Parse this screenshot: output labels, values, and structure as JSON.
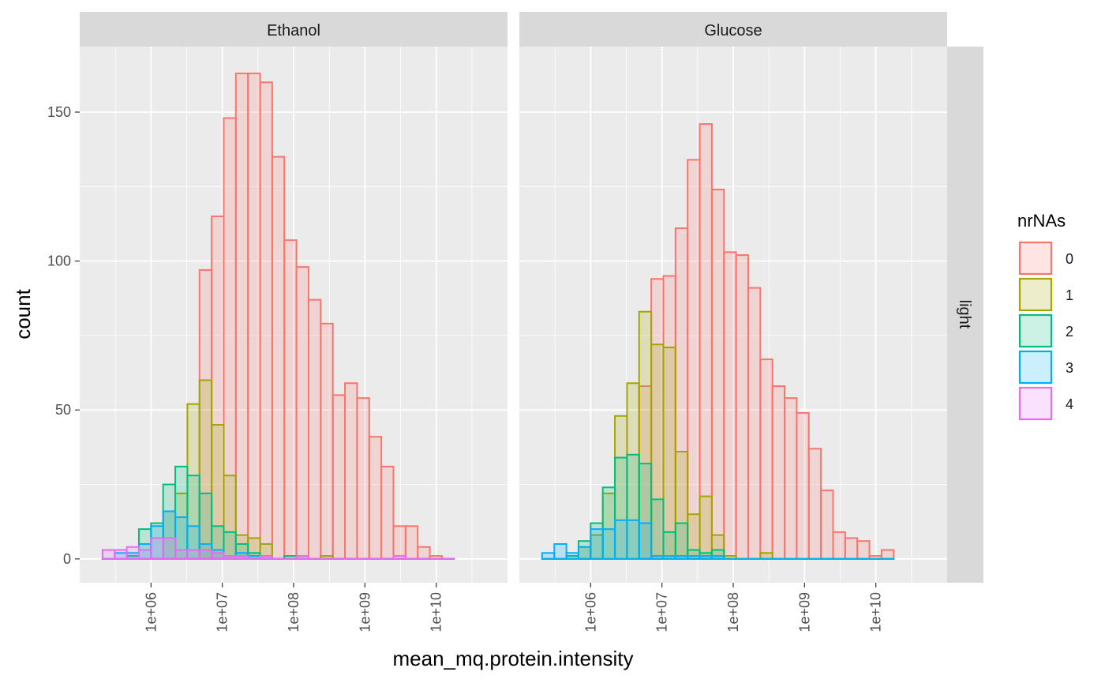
{
  "chart_data": {
    "type": "bar",
    "subtype": "overlaid histogram, faceted",
    "xlabel": "mean_mq.protein.intensity",
    "ylabel": "count",
    "x_scale": "log10",
    "x_range": [
      100000,
      100000000000
    ],
    "x_ticks": [
      "1e+06",
      "1e+07",
      "1e+08",
      "1e+09",
      "1e+10"
    ],
    "x_tick_values": [
      1000000,
      10000000,
      100000000,
      1000000000,
      10000000000
    ],
    "ylim": [
      -8,
      172
    ],
    "y_ticks": [
      "0",
      "50",
      "100",
      "150"
    ],
    "y_tick_values": [
      0,
      50,
      100,
      150
    ],
    "row_facet": "light",
    "grid": true,
    "legend": {
      "title": "nrNAs",
      "position": "right",
      "entries": [
        {
          "label": "0",
          "color": "#F8766D"
        },
        {
          "label": "1",
          "color": "#A3A500"
        },
        {
          "label": "2",
          "color": "#00BF7D"
        },
        {
          "label": "3",
          "color": "#00B0F6"
        },
        {
          "label": "4",
          "color": "#E76BF3"
        }
      ]
    },
    "facets": [
      {
        "title": "Ethanol",
        "bins": [
          {
            "x0": 5.32,
            "x1": 5.49
          },
          {
            "x0": 5.49,
            "x1": 5.66
          },
          {
            "x0": 5.66,
            "x1": 5.83
          },
          {
            "x0": 5.83,
            "x1": 6.0
          },
          {
            "x0": 6.0,
            "x1": 6.17
          },
          {
            "x0": 6.17,
            "x1": 6.34
          },
          {
            "x0": 6.34,
            "x1": 6.51
          },
          {
            "x0": 6.51,
            "x1": 6.68
          },
          {
            "x0": 6.68,
            "x1": 6.85
          },
          {
            "x0": 6.85,
            "x1": 7.02
          },
          {
            "x0": 7.02,
            "x1": 7.19
          },
          {
            "x0": 7.19,
            "x1": 7.36
          },
          {
            "x0": 7.36,
            "x1": 7.53
          },
          {
            "x0": 7.53,
            "x1": 7.7
          },
          {
            "x0": 7.7,
            "x1": 7.87
          },
          {
            "x0": 7.87,
            "x1": 8.04
          },
          {
            "x0": 8.04,
            "x1": 8.21
          },
          {
            "x0": 8.21,
            "x1": 8.38
          },
          {
            "x0": 8.38,
            "x1": 8.55
          },
          {
            "x0": 8.55,
            "x1": 8.72
          },
          {
            "x0": 8.72,
            "x1": 8.89
          },
          {
            "x0": 8.89,
            "x1": 9.06
          },
          {
            "x0": 9.06,
            "x1": 9.23
          },
          {
            "x0": 9.23,
            "x1": 9.4
          },
          {
            "x0": 9.4,
            "x1": 9.57
          },
          {
            "x0": 9.57,
            "x1": 9.74
          },
          {
            "x0": 9.74,
            "x1": 9.91
          },
          {
            "x0": 9.91,
            "x1": 10.08
          },
          {
            "x0": 10.08,
            "x1": 10.25
          }
        ],
        "series": [
          {
            "name": "0",
            "values": [
              0,
              0,
              0,
              0,
              0,
              0,
              0,
              0,
              97,
              115,
              148,
              163,
              163,
              160,
              135,
              107,
              98,
              87,
              79,
              55,
              59,
              54,
              41,
              31,
              11,
              11,
              4,
              1,
              0
            ]
          },
          {
            "name": "1",
            "values": [
              0,
              0,
              0,
              0,
              0,
              16,
              22,
              52,
              60,
              45,
              28,
              8,
              7,
              5,
              0,
              0,
              0,
              0,
              1,
              0,
              0,
              0,
              0,
              0,
              0,
              0,
              0,
              0,
              0
            ]
          },
          {
            "name": "2",
            "values": [
              0,
              0,
              1,
              10,
              12,
              25,
              31,
              28,
              22,
              11,
              9,
              5,
              2,
              0,
              0,
              1,
              1,
              0,
              0,
              0,
              0,
              0,
              0,
              0,
              0,
              0,
              0,
              0,
              0
            ]
          },
          {
            "name": "3",
            "values": [
              0,
              2,
              2,
              5,
              11,
              16,
              14,
              11,
              5,
              3,
              1,
              2,
              1,
              1,
              0,
              0,
              0,
              0,
              0,
              0,
              0,
              0,
              0,
              0,
              0,
              0,
              0,
              0,
              0
            ]
          },
          {
            "name": "4",
            "values": [
              3,
              3,
              4,
              3,
              7,
              7,
              3,
              3,
              3,
              2,
              1,
              1,
              0,
              1,
              0,
              0,
              1,
              0,
              0,
              0,
              0,
              0,
              0,
              0,
              1,
              0,
              0,
              0,
              0
            ]
          }
        ]
      },
      {
        "title": "Glucose",
        "bins": [
          {
            "x0": 5.32,
            "x1": 5.49
          },
          {
            "x0": 5.49,
            "x1": 5.66
          },
          {
            "x0": 5.66,
            "x1": 5.83
          },
          {
            "x0": 5.83,
            "x1": 6.0
          },
          {
            "x0": 6.0,
            "x1": 6.17
          },
          {
            "x0": 6.17,
            "x1": 6.34
          },
          {
            "x0": 6.34,
            "x1": 6.51
          },
          {
            "x0": 6.51,
            "x1": 6.68
          },
          {
            "x0": 6.68,
            "x1": 6.85
          },
          {
            "x0": 6.85,
            "x1": 7.02
          },
          {
            "x0": 7.02,
            "x1": 7.19
          },
          {
            "x0": 7.19,
            "x1": 7.36
          },
          {
            "x0": 7.36,
            "x1": 7.53
          },
          {
            "x0": 7.53,
            "x1": 7.7
          },
          {
            "x0": 7.7,
            "x1": 7.87
          },
          {
            "x0": 7.87,
            "x1": 8.04
          },
          {
            "x0": 8.04,
            "x1": 8.21
          },
          {
            "x0": 8.21,
            "x1": 8.38
          },
          {
            "x0": 8.38,
            "x1": 8.55
          },
          {
            "x0": 8.55,
            "x1": 8.72
          },
          {
            "x0": 8.72,
            "x1": 8.89
          },
          {
            "x0": 8.89,
            "x1": 9.06
          },
          {
            "x0": 9.06,
            "x1": 9.23
          },
          {
            "x0": 9.23,
            "x1": 9.4
          },
          {
            "x0": 9.4,
            "x1": 9.57
          },
          {
            "x0": 9.57,
            "x1": 9.74
          },
          {
            "x0": 9.74,
            "x1": 9.91
          },
          {
            "x0": 9.91,
            "x1": 10.08
          },
          {
            "x0": 10.08,
            "x1": 10.25
          }
        ],
        "series": [
          {
            "name": "0",
            "values": [
              0,
              0,
              0,
              0,
              0,
              0,
              0,
              0,
              58,
              94,
              95,
              111,
              134,
              146,
              124,
              103,
              102,
              91,
              67,
              58,
              54,
              49,
              37,
              23,
              9,
              7,
              6,
              1,
              3
            ]
          },
          {
            "name": "1",
            "values": [
              0,
              0,
              0,
              4,
              8,
              22,
              48,
              59,
              83,
              72,
              71,
              36,
              15,
              21,
              8,
              1,
              0,
              0,
              2,
              0,
              0,
              0,
              0,
              0,
              0,
              0,
              0,
              0,
              0
            ]
          },
          {
            "name": "2",
            "values": [
              0,
              0,
              1,
              6,
              12,
              24,
              34,
              35,
              32,
              20,
              9,
              12,
              3,
              2,
              3,
              0,
              0,
              0,
              0,
              0,
              0,
              0,
              0,
              0,
              0,
              0,
              0,
              0,
              0
            ]
          },
          {
            "name": "3",
            "values": [
              2,
              5,
              2,
              4,
              10,
              10,
              13,
              13,
              12,
              1,
              1,
              1,
              1,
              1,
              1,
              0,
              0,
              0,
              0,
              0,
              0,
              0,
              0,
              0,
              0,
              0,
              0,
              0,
              0
            ]
          }
        ]
      }
    ]
  }
}
